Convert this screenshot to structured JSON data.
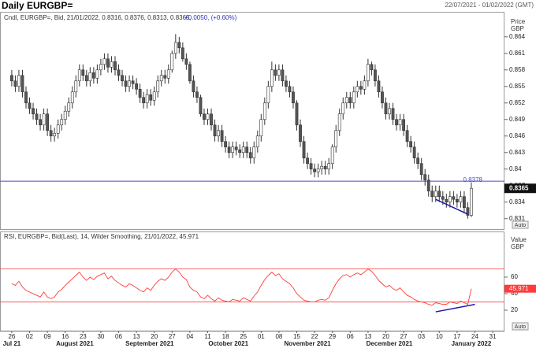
{
  "header": {
    "title": "Daily EURGBP=",
    "range": "22/07/2021 - 01/02/2022 (GMT)"
  },
  "controls": {
    "auto": "Auto"
  },
  "chart_data": {
    "type": "candlestick",
    "legend": "Cndl, EURGBP=, Bid, 21/01/2022, 0.8316, 0.8376, 0.8313, 0.8365,",
    "change": "+0.0050, (+0.60%)",
    "ylabel": "Price",
    "yunit": "GBP",
    "up_color": "#ffffff",
    "down_color": "#555555",
    "wick_color": "#333333",
    "xlim": [
      -3.3,
      138.3
    ],
    "ylim": [
      0.8291,
      0.8684
    ],
    "yticks": [
      0.864,
      0.861,
      0.858,
      0.855,
      0.852,
      0.849,
      0.846,
      0.843,
      0.84,
      0.837,
      0.834,
      0.831
    ],
    "xticks": [
      {
        "value": 0,
        "label": "26"
      },
      {
        "value": 5,
        "label": "02"
      },
      {
        "value": 10,
        "label": "09"
      },
      {
        "value": 15,
        "label": "16"
      },
      {
        "value": 20,
        "label": "23"
      },
      {
        "value": 25,
        "label": "30"
      },
      {
        "value": 30,
        "label": "06"
      },
      {
        "value": 35,
        "label": "13"
      },
      {
        "value": 40,
        "label": "20"
      },
      {
        "value": 45,
        "label": "27"
      },
      {
        "value": 50,
        "label": "04"
      },
      {
        "value": 55,
        "label": "11"
      },
      {
        "value": 60,
        "label": "18"
      },
      {
        "value": 65,
        "label": "25"
      },
      {
        "value": 70,
        "label": "01"
      },
      {
        "value": 75,
        "label": "08"
      },
      {
        "value": 80,
        "label": "15"
      },
      {
        "value": 85,
        "label": "22"
      },
      {
        "value": 90,
        "label": "29"
      },
      {
        "value": 95,
        "label": "06"
      },
      {
        "value": 100,
        "label": "13"
      },
      {
        "value": 105,
        "label": "20"
      },
      {
        "value": 110,
        "label": "27"
      },
      {
        "value": 115,
        "label": "03"
      },
      {
        "value": 120,
        "label": "10"
      },
      {
        "value": 125,
        "label": "17"
      },
      {
        "value": 130,
        "label": "24"
      },
      {
        "value": 135,
        "label": "31"
      }
    ],
    "month_labels": [
      {
        "value": 0,
        "label": "Jul 21"
      },
      {
        "value": 17.7,
        "label": "August 2021"
      },
      {
        "value": 38.7,
        "label": "September 2021"
      },
      {
        "value": 60.8,
        "label": "October 2021"
      },
      {
        "value": 83,
        "label": "November 2021"
      },
      {
        "value": 106,
        "label": "December 2021"
      },
      {
        "value": 129,
        "label": "January 2022"
      }
    ],
    "hline": {
      "value": 0.8378,
      "color": "#4a4ac8"
    },
    "trendline": {
      "color": "#1a1aa8",
      "points": [
        [
          119,
          0.8345
        ],
        [
          128,
          0.8318
        ]
      ]
    },
    "ohlc": [
      [
        0.857,
        0.858,
        0.855,
        0.856
      ],
      [
        0.856,
        0.857,
        0.854,
        0.855
      ],
      [
        0.855,
        0.858,
        0.854,
        0.857
      ],
      [
        0.857,
        0.858,
        0.853,
        0.854
      ],
      [
        0.854,
        0.855,
        0.851,
        0.852
      ],
      [
        0.852,
        0.853,
        0.85,
        0.851
      ],
      [
        0.851,
        0.852,
        0.849,
        0.85
      ],
      [
        0.85,
        0.851,
        0.848,
        0.849
      ],
      [
        0.849,
        0.85,
        0.847,
        0.848
      ],
      [
        0.848,
        0.851,
        0.847,
        0.85
      ],
      [
        0.85,
        0.851,
        0.846,
        0.847
      ],
      [
        0.847,
        0.848,
        0.845,
        0.846
      ],
      [
        0.846,
        0.8475,
        0.845,
        0.8465
      ],
      [
        0.8465,
        0.849,
        0.8455,
        0.848
      ],
      [
        0.848,
        0.85,
        0.847,
        0.849
      ],
      [
        0.849,
        0.8515,
        0.848,
        0.8505
      ],
      [
        0.8505,
        0.853,
        0.8495,
        0.852
      ],
      [
        0.852,
        0.855,
        0.851,
        0.854
      ],
      [
        0.854,
        0.857,
        0.853,
        0.856
      ],
      [
        0.856,
        0.859,
        0.855,
        0.858
      ],
      [
        0.858,
        0.859,
        0.856,
        0.857
      ],
      [
        0.857,
        0.858,
        0.855,
        0.856
      ],
      [
        0.856,
        0.8585,
        0.855,
        0.8575
      ],
      [
        0.8575,
        0.8585,
        0.8555,
        0.8565
      ],
      [
        0.8565,
        0.859,
        0.8555,
        0.858
      ],
      [
        0.858,
        0.86,
        0.857,
        0.859
      ],
      [
        0.859,
        0.861,
        0.858,
        0.86
      ],
      [
        0.86,
        0.861,
        0.8575,
        0.8585
      ],
      [
        0.8585,
        0.8605,
        0.8575,
        0.8595
      ],
      [
        0.8595,
        0.8605,
        0.857,
        0.858
      ],
      [
        0.858,
        0.859,
        0.856,
        0.857
      ],
      [
        0.857,
        0.858,
        0.855,
        0.856
      ],
      [
        0.856,
        0.857,
        0.854,
        0.855
      ],
      [
        0.855,
        0.857,
        0.854,
        0.856
      ],
      [
        0.856,
        0.857,
        0.8545,
        0.8555
      ],
      [
        0.8555,
        0.8565,
        0.8535,
        0.8545
      ],
      [
        0.8545,
        0.8555,
        0.852,
        0.853
      ],
      [
        0.853,
        0.854,
        0.851,
        0.852
      ],
      [
        0.852,
        0.8545,
        0.851,
        0.8535
      ],
      [
        0.8535,
        0.8545,
        0.8515,
        0.8525
      ],
      [
        0.8525,
        0.855,
        0.8515,
        0.854
      ],
      [
        0.854,
        0.857,
        0.853,
        0.856
      ],
      [
        0.856,
        0.858,
        0.855,
        0.857
      ],
      [
        0.857,
        0.858,
        0.8555,
        0.8565
      ],
      [
        0.8565,
        0.859,
        0.8555,
        0.858
      ],
      [
        0.858,
        0.8615,
        0.8575,
        0.861
      ],
      [
        0.861,
        0.8645,
        0.86,
        0.863
      ],
      [
        0.863,
        0.864,
        0.861,
        0.862
      ],
      [
        0.862,
        0.863,
        0.8595,
        0.86
      ],
      [
        0.86,
        0.861,
        0.858,
        0.859
      ],
      [
        0.859,
        0.8595,
        0.8555,
        0.856
      ],
      [
        0.856,
        0.857,
        0.853,
        0.854
      ],
      [
        0.854,
        0.855,
        0.852,
        0.853
      ],
      [
        0.853,
        0.8535,
        0.8495,
        0.85
      ],
      [
        0.85,
        0.851,
        0.848,
        0.849
      ],
      [
        0.849,
        0.851,
        0.848,
        0.85
      ],
      [
        0.85,
        0.851,
        0.847,
        0.848
      ],
      [
        0.848,
        0.849,
        0.845,
        0.846
      ],
      [
        0.846,
        0.848,
        0.845,
        0.847
      ],
      [
        0.847,
        0.848,
        0.844,
        0.845
      ],
      [
        0.845,
        0.846,
        0.843,
        0.844
      ],
      [
        0.844,
        0.845,
        0.842,
        0.843
      ],
      [
        0.843,
        0.845,
        0.842,
        0.844
      ],
      [
        0.844,
        0.845,
        0.8425,
        0.8435
      ],
      [
        0.8435,
        0.8445,
        0.842,
        0.843
      ],
      [
        0.843,
        0.845,
        0.842,
        0.844
      ],
      [
        0.844,
        0.845,
        0.842,
        0.843
      ],
      [
        0.843,
        0.844,
        0.841,
        0.842
      ],
      [
        0.842,
        0.845,
        0.841,
        0.844
      ],
      [
        0.844,
        0.847,
        0.843,
        0.846
      ],
      [
        0.846,
        0.85,
        0.845,
        0.849
      ],
      [
        0.849,
        0.853,
        0.848,
        0.852
      ],
      [
        0.852,
        0.856,
        0.851,
        0.855
      ],
      [
        0.855,
        0.8595,
        0.854,
        0.858
      ],
      [
        0.858,
        0.859,
        0.856,
        0.857
      ],
      [
        0.857,
        0.859,
        0.856,
        0.858
      ],
      [
        0.858,
        0.859,
        0.855,
        0.856
      ],
      [
        0.856,
        0.857,
        0.854,
        0.855
      ],
      [
        0.855,
        0.856,
        0.853,
        0.854
      ],
      [
        0.854,
        0.855,
        0.851,
        0.852
      ],
      [
        0.852,
        0.8525,
        0.847,
        0.848
      ],
      [
        0.848,
        0.849,
        0.844,
        0.845
      ],
      [
        0.845,
        0.846,
        0.841,
        0.842
      ],
      [
        0.842,
        0.843,
        0.84,
        0.841
      ],
      [
        0.841,
        0.842,
        0.839,
        0.84
      ],
      [
        0.84,
        0.841,
        0.8385,
        0.8395
      ],
      [
        0.8395,
        0.841,
        0.8385,
        0.84
      ],
      [
        0.84,
        0.8415,
        0.839,
        0.8405
      ],
      [
        0.8405,
        0.8415,
        0.839,
        0.84
      ],
      [
        0.84,
        0.842,
        0.839,
        0.841
      ],
      [
        0.841,
        0.8445,
        0.84,
        0.844
      ],
      [
        0.844,
        0.848,
        0.843,
        0.847
      ],
      [
        0.847,
        0.851,
        0.846,
        0.85
      ],
      [
        0.85,
        0.853,
        0.849,
        0.852
      ],
      [
        0.852,
        0.854,
        0.851,
        0.853
      ],
      [
        0.853,
        0.854,
        0.851,
        0.852
      ],
      [
        0.852,
        0.855,
        0.851,
        0.854
      ],
      [
        0.854,
        0.856,
        0.853,
        0.855
      ],
      [
        0.855,
        0.856,
        0.8535,
        0.8545
      ],
      [
        0.8545,
        0.857,
        0.8535,
        0.856
      ],
      [
        0.856,
        0.86,
        0.855,
        0.859
      ],
      [
        0.859,
        0.8595,
        0.857,
        0.858
      ],
      [
        0.858,
        0.859,
        0.855,
        0.856
      ],
      [
        0.856,
        0.857,
        0.853,
        0.854
      ],
      [
        0.854,
        0.855,
        0.851,
        0.852
      ],
      [
        0.852,
        0.853,
        0.849,
        0.85
      ],
      [
        0.85,
        0.852,
        0.849,
        0.851
      ],
      [
        0.851,
        0.852,
        0.848,
        0.849
      ],
      [
        0.849,
        0.85,
        0.847,
        0.848
      ],
      [
        0.848,
        0.85,
        0.847,
        0.849
      ],
      [
        0.849,
        0.85,
        0.846,
        0.847
      ],
      [
        0.847,
        0.848,
        0.844,
        0.845
      ],
      [
        0.845,
        0.846,
        0.843,
        0.844
      ],
      [
        0.844,
        0.845,
        0.841,
        0.842
      ],
      [
        0.842,
        0.843,
        0.84,
        0.841
      ],
      [
        0.841,
        0.842,
        0.838,
        0.839
      ],
      [
        0.839,
        0.84,
        0.837,
        0.838
      ],
      [
        0.838,
        0.839,
        0.835,
        0.836
      ],
      [
        0.836,
        0.837,
        0.834,
        0.835
      ],
      [
        0.835,
        0.837,
        0.834,
        0.836
      ],
      [
        0.836,
        0.837,
        0.834,
        0.835
      ],
      [
        0.835,
        0.836,
        0.8335,
        0.8345
      ],
      [
        0.8345,
        0.8355,
        0.833,
        0.834
      ],
      [
        0.834,
        0.836,
        0.833,
        0.835
      ],
      [
        0.835,
        0.836,
        0.8335,
        0.8345
      ],
      [
        0.8345,
        0.8355,
        0.833,
        0.834
      ],
      [
        0.834,
        0.836,
        0.833,
        0.835
      ],
      [
        0.835,
        0.836,
        0.832,
        0.833
      ],
      [
        0.833,
        0.834,
        0.831,
        0.8316
      ],
      [
        0.8316,
        0.8376,
        0.8313,
        0.8365
      ]
    ],
    "rsi": {
      "type": "line",
      "legend": "RSI, EURGBP=, Bid(Last),  14, Wilder Smoothing, 21/01/2022, 45.971",
      "ylabel": "Value",
      "yunit": "GBP",
      "color": "#ff3b3b",
      "ylim": [
        -4.8,
        113.3
      ],
      "yticks": [
        60,
        40,
        20
      ],
      "levels": [
        70,
        30
      ],
      "trendline": {
        "color": "#1a1aa8",
        "points": [
          [
            119,
            18
          ],
          [
            130,
            27
          ]
        ]
      },
      "values": [
        52,
        50,
        55,
        48,
        44,
        42,
        40,
        38,
        36,
        42,
        36,
        34,
        36,
        42,
        45,
        50,
        54,
        58,
        62,
        66,
        60,
        56,
        60,
        57,
        61,
        63,
        65,
        58,
        61,
        56,
        53,
        50,
        48,
        52,
        50,
        47,
        44,
        42,
        47,
        44,
        50,
        55,
        58,
        56,
        60,
        66,
        70,
        66,
        60,
        57,
        48,
        44,
        42,
        36,
        34,
        38,
        34,
        31,
        35,
        32,
        31,
        30,
        33,
        32,
        31,
        35,
        33,
        31,
        37,
        42,
        50,
        57,
        62,
        66,
        62,
        64,
        58,
        55,
        52,
        47,
        40,
        36,
        32,
        31,
        30,
        30,
        32,
        33,
        32,
        35,
        44,
        52,
        58,
        62,
        63,
        60,
        63,
        65,
        63,
        66,
        70,
        67,
        62,
        56,
        52,
        48,
        50,
        46,
        44,
        47,
        42,
        38,
        36,
        33,
        31,
        30,
        29,
        27,
        26,
        29,
        28,
        27,
        27,
        30,
        29,
        28,
        31,
        29,
        27,
        45.971
      ]
    }
  }
}
